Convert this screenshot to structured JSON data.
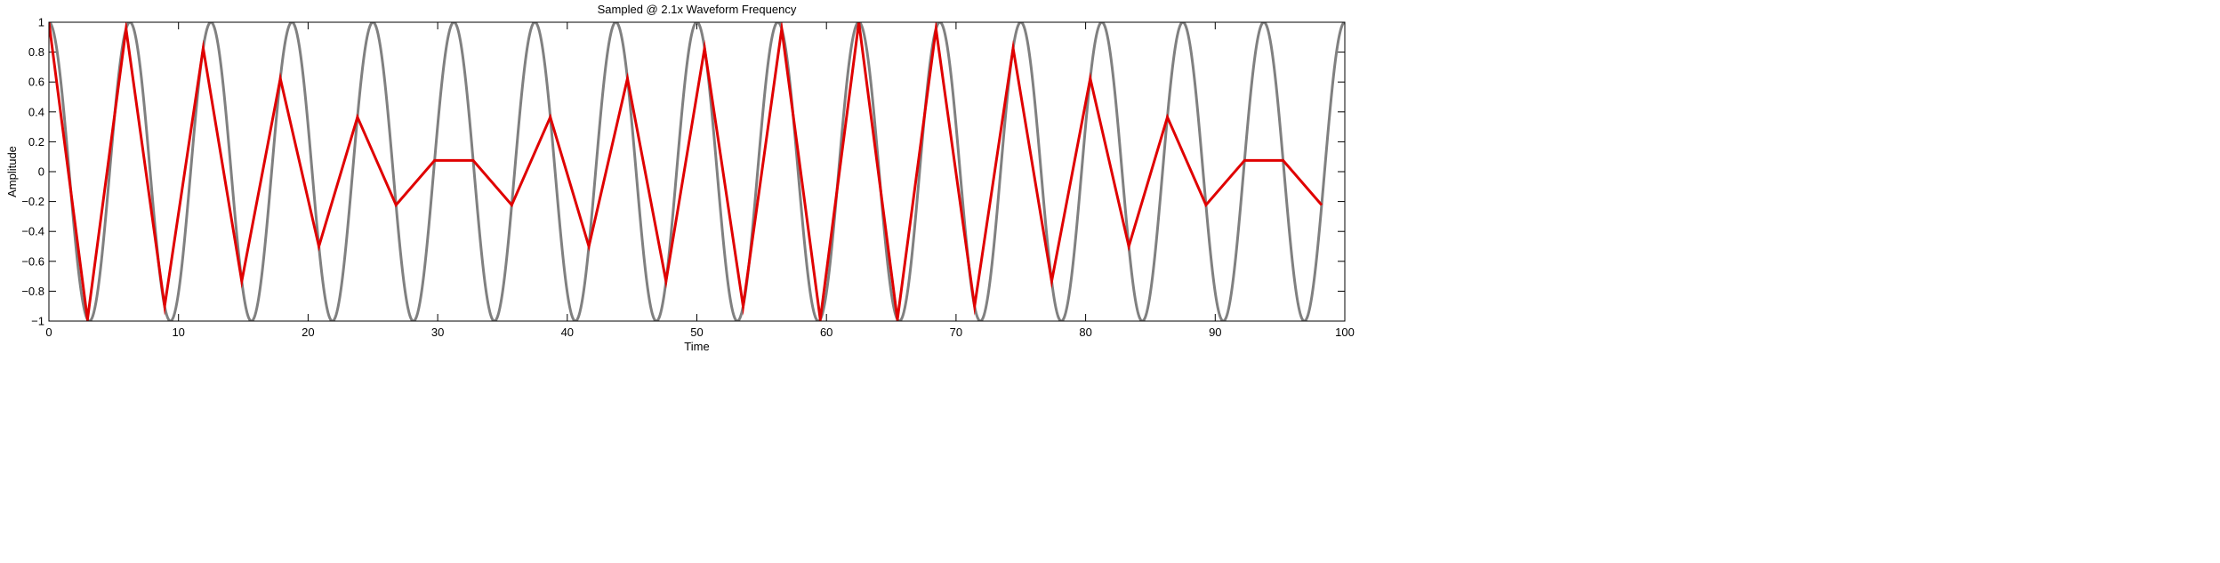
{
  "chart_data": {
    "type": "line",
    "title": "Sampled @ 2.1x Waveform Frequency",
    "xlabel": "Time",
    "ylabel": "Amplitude",
    "xlim": [
      0,
      100
    ],
    "ylim": [
      -1,
      1
    ],
    "grid": false,
    "legend": "none",
    "x_ticks": [
      0,
      10,
      20,
      30,
      40,
      50,
      60,
      70,
      80,
      90,
      100
    ],
    "x_tick_labels": [
      "0",
      "10",
      "20",
      "30",
      "40",
      "50",
      "60",
      "70",
      "80",
      "90",
      "100"
    ],
    "y_ticks": [
      1,
      0.8,
      0.6,
      0.4,
      0.2,
      0,
      -0.2,
      -0.4,
      -0.6,
      -0.8,
      -1
    ],
    "y_tick_labels": [
      "1",
      "0.8",
      "0.6",
      "0.4",
      "0.2",
      "0",
      "−0.2",
      "−0.4",
      "−0.6",
      "−0.8",
      "−1"
    ],
    "series": [
      {
        "kind": "waveform",
        "function": "cos",
        "period": 6.25,
        "amplitude": 1,
        "x_range": [
          0,
          100
        ],
        "color": "#808080"
      },
      {
        "kind": "samples",
        "color": "#e00000",
        "x": [
          0,
          2.976,
          5.952,
          8.929,
          11.905,
          14.881,
          17.857,
          20.833,
          23.81,
          26.786,
          29.762,
          32.738,
          35.714,
          38.69,
          41.667,
          44.643,
          47.619,
          50.595,
          53.571,
          56.548,
          59.524,
          62.5,
          65.476,
          68.452,
          71.429,
          74.405,
          77.381,
          80.357,
          83.333,
          86.31,
          89.286,
          92.262,
          95.238,
          98.214
        ],
        "y": [
          1,
          -0.989,
          0.956,
          -0.901,
          0.826,
          -0.733,
          0.623,
          -0.5,
          0.365,
          -0.223,
          0.075,
          0.075,
          -0.223,
          0.365,
          -0.5,
          0.623,
          -0.733,
          0.826,
          -0.901,
          0.956,
          -0.989,
          1,
          -0.989,
          0.956,
          -0.901,
          0.826,
          -0.733,
          0.623,
          -0.5,
          0.365,
          -0.223,
          0.075,
          0.075,
          -0.223
        ]
      }
    ]
  }
}
